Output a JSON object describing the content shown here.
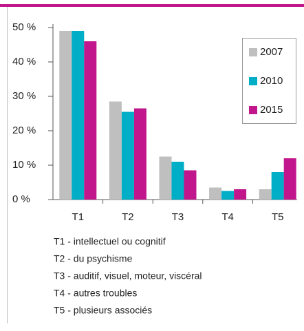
{
  "chart_data": {
    "type": "bar",
    "categories": [
      "T1",
      "T2",
      "T3",
      "T4",
      "T5"
    ],
    "series": [
      {
        "name": "2007",
        "color": "#bfbfbf",
        "values": [
          49,
          28.5,
          12.5,
          3.5,
          3
        ]
      },
      {
        "name": "2010",
        "color": "#00aec7",
        "values": [
          49,
          25.5,
          11,
          2.5,
          8
        ]
      },
      {
        "name": "2015",
        "color": "#c2178c",
        "values": [
          46,
          26.5,
          8.5,
          3,
          12
        ]
      }
    ],
    "ylim": [
      0,
      50
    ],
    "yticks": [
      {
        "value": 0,
        "label": "0 %"
      },
      {
        "value": 10,
        "label": "10 %"
      },
      {
        "value": 20,
        "label": "20 %"
      },
      {
        "value": 30,
        "label": "30 %"
      },
      {
        "value": 40,
        "label": "40 %"
      },
      {
        "value": 50,
        "label": "50 %"
      }
    ],
    "legend": "top-right",
    "notes": [
      "T1 - intellectuel ou cognitif",
      "T2 - du psychisme",
      "T3 - auditif, visuel, moteur, viscéral",
      "T4 - autres troubles",
      "T5 - plusieurs associés"
    ]
  }
}
